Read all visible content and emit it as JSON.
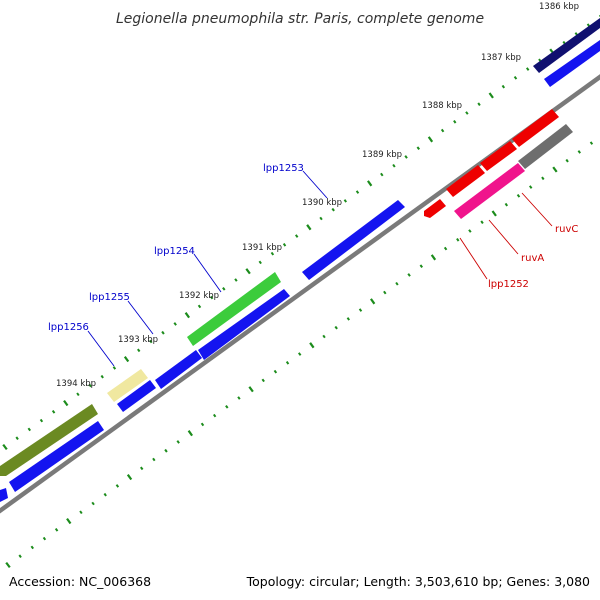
{
  "title": "Legionella pneumophila str. Paris, complete genome",
  "footer": {
    "accession": "Accession: NC_006368",
    "summary": "Topology: circular; Length: 3,503,610 bp; Genes: 3,080"
  },
  "ticks": [
    "1386 kbp",
    "1387 kbp",
    "1388 kbp",
    "1389 kbp",
    "1390 kbp",
    "1391 kbp",
    "1392 kbp",
    "1393 kbp",
    "1394 kbp"
  ],
  "gene_labels": [
    "lpp1253",
    "lpp1254",
    "lpp1255",
    "lpp1256",
    "lpp1252",
    "ruvA",
    "ruvC"
  ],
  "colors": {
    "blue": "#1414f0",
    "navy": "#101070",
    "olive": "#6b8a22",
    "green": "#3ccc3c",
    "pale_yellow": "#f0e8a0",
    "red": "#ee0000",
    "pink": "#f0148c",
    "gray": "#6e6e6e",
    "tick_green": "#1c8c1c",
    "backbone": "#808080"
  }
}
